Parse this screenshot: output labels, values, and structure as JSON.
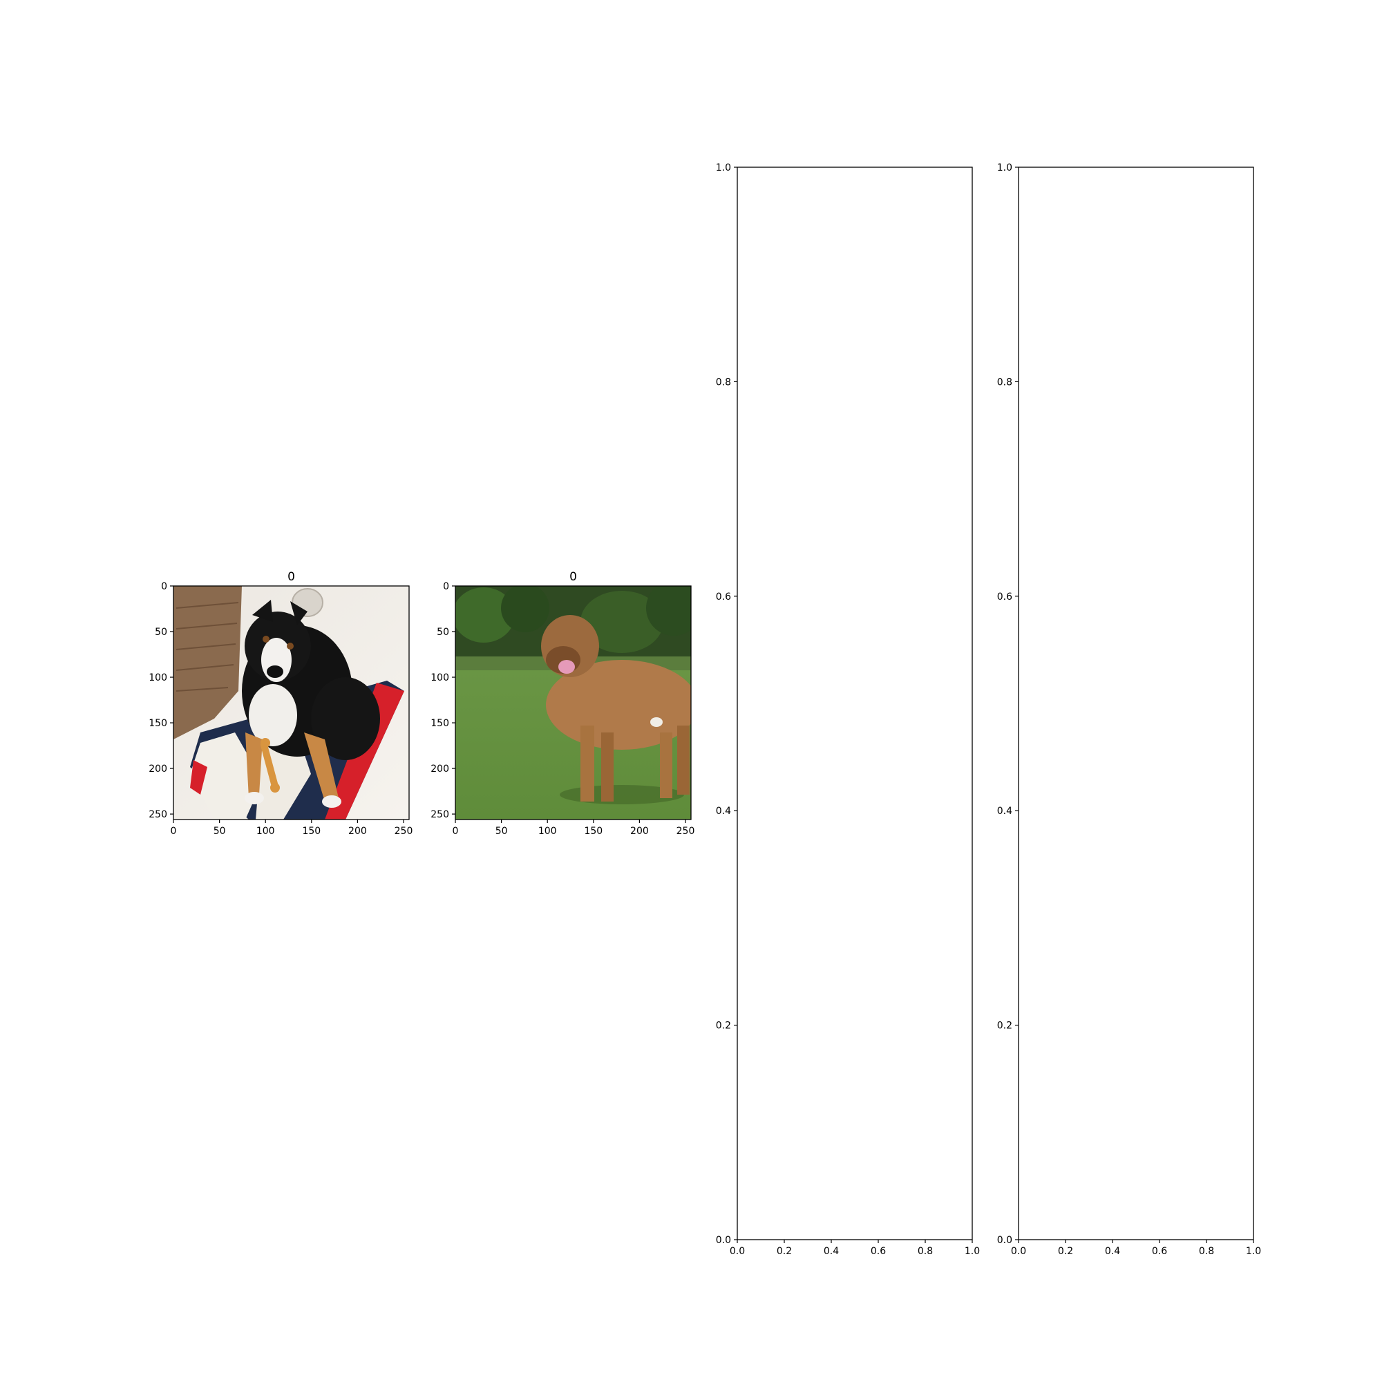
{
  "chart_data": [
    {
      "type": "image",
      "title": "0",
      "image_description": "black and white tricolor dog lying on a rug with a bone toy",
      "xlim": [
        0,
        256
      ],
      "ylim": [
        256,
        0
      ],
      "xticks": [
        0,
        50,
        100,
        150,
        200,
        250
      ],
      "yticks": [
        0,
        50,
        100,
        150,
        200,
        250
      ]
    },
    {
      "type": "image",
      "title": "0",
      "image_description": "tan mastiff-type dog standing on grass",
      "xlim": [
        0,
        256
      ],
      "ylim": [
        256,
        0
      ],
      "xticks": [
        0,
        50,
        100,
        150,
        200,
        250
      ],
      "yticks": [
        0,
        50,
        100,
        150,
        200,
        250
      ]
    },
    {
      "type": "empty",
      "title": "",
      "xlim": [
        0,
        1
      ],
      "ylim": [
        0,
        1
      ],
      "xticks": [
        "0.0",
        "0.2",
        "0.4",
        "0.6",
        "0.8",
        "1.0"
      ],
      "yticks": [
        "0.0",
        "0.2",
        "0.4",
        "0.6",
        "0.8",
        "1.0"
      ]
    },
    {
      "type": "empty",
      "title": "",
      "xlim": [
        0,
        1
      ],
      "ylim": [
        0,
        1
      ],
      "xticks": [
        "0.0",
        "0.2",
        "0.4",
        "0.6",
        "0.8",
        "1.0"
      ],
      "yticks": [
        "0.0",
        "0.2",
        "0.4",
        "0.6",
        "0.8",
        "1.0"
      ]
    }
  ]
}
